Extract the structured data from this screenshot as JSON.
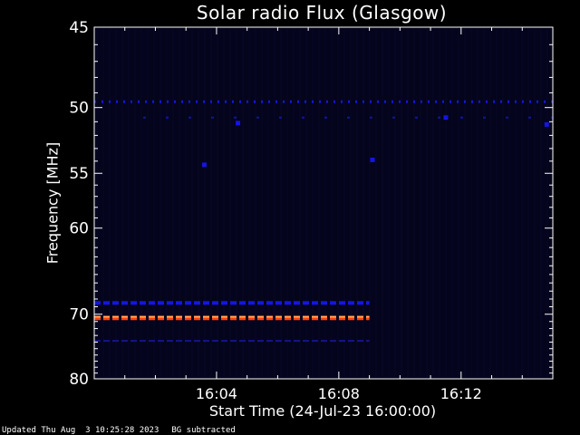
{
  "header": {
    "title": "Solar radio Flux (Glasgow)"
  },
  "footer": {
    "updated": "Updated Thu Aug  3 10:25:28 2023",
    "bg_note": "BG subtracted"
  },
  "colors": {
    "background": "#000000",
    "plot_bg": "#04041c",
    "axis": "#ffffff",
    "band_blue": "#1414e6",
    "band_red": "#ff4010",
    "band_orange": "#ffb060",
    "dim": "#14148c"
  },
  "chart_data": {
    "type": "heatmap",
    "title": "Solar radio Flux (Glasgow)",
    "xlabel": "Start Time (24-Jul-23 16:00:00)",
    "ylabel": "Frequency [MHz]",
    "xlim_minutes": [
      0,
      15
    ],
    "ylim_mhz": [
      45,
      80
    ],
    "y_reversed": true,
    "x_ticks": [
      4,
      8,
      12
    ],
    "x_tick_labels": [
      "16:04",
      "16:08",
      "16:12"
    ],
    "y_ticks": [
      45,
      50,
      55,
      60,
      70,
      80
    ],
    "y_tick_labels": [
      "45",
      "50",
      "55",
      "60",
      "70",
      "80"
    ],
    "grid": false,
    "features": [
      {
        "freq_mhz": 49.6,
        "x_start_min": 0.0,
        "x_end_min": 15.0,
        "color": "blue",
        "style": "dotted"
      },
      {
        "freq_mhz": 50.7,
        "x_start_min": 1.6,
        "x_end_min": 15.0,
        "color": "blue",
        "style": "sparse"
      },
      {
        "freq_mhz": 68.5,
        "x_start_min": 0.0,
        "x_end_min": 9.0,
        "color": "blue",
        "style": "dashed"
      },
      {
        "freq_mhz": 70.5,
        "x_start_min": 0.0,
        "x_end_min": 9.0,
        "color": "red",
        "style": "dashed"
      },
      {
        "freq_mhz": 73.8,
        "x_start_min": 0.0,
        "x_end_min": 9.0,
        "color": "dim",
        "style": "dashed"
      }
    ],
    "spots": [
      {
        "x_min": 3.6,
        "freq_mhz": 54.3
      },
      {
        "x_min": 4.7,
        "freq_mhz": 51.1
      },
      {
        "x_min": 9.1,
        "freq_mhz": 53.9
      },
      {
        "x_min": 11.5,
        "freq_mhz": 50.7
      },
      {
        "x_min": 14.8,
        "freq_mhz": 51.2
      }
    ]
  }
}
